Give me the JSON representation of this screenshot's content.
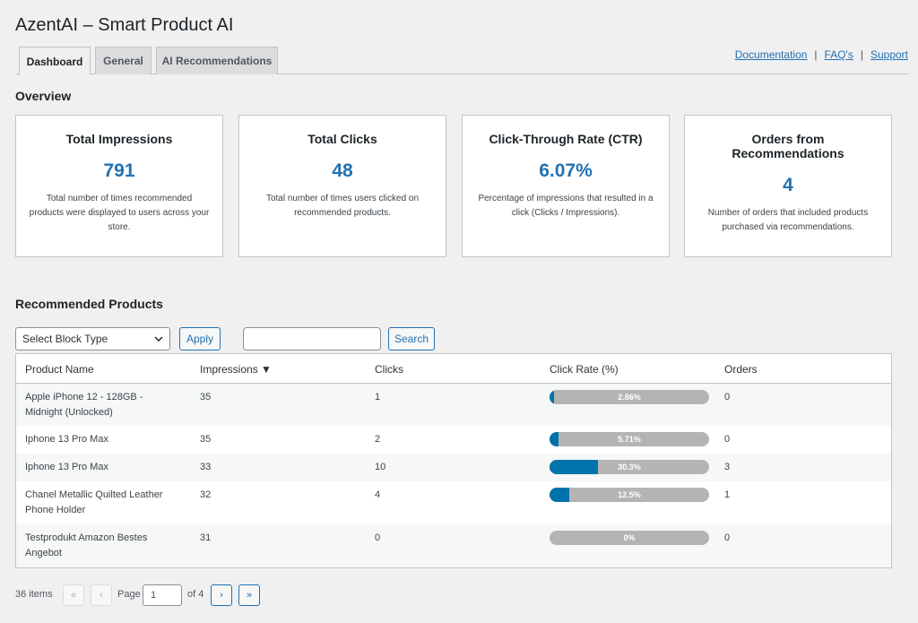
{
  "title": "AzentAI – Smart Product AI",
  "tabs": [
    "Dashboard",
    "General",
    "AI Recommendations"
  ],
  "links": [
    "Documentation",
    "FAQ's",
    "Support"
  ],
  "overview": {
    "heading": "Overview",
    "cards": [
      {
        "title": "Total Impressions",
        "value": "791",
        "desc": "Total number of times recommended products were displayed to users across your store."
      },
      {
        "title": "Total Clicks",
        "value": "48",
        "desc": "Total number of times users clicked on recommended products."
      },
      {
        "title": "Click-Through Rate (CTR)",
        "value": "6.07%",
        "desc": "Percentage of impressions that resulted in a click (Clicks / Impressions)."
      },
      {
        "title": "Orders from Recommendations",
        "value": "4",
        "desc": "Number of orders that included products purchased via recommendations."
      }
    ]
  },
  "products": {
    "heading": "Recommended Products",
    "select_value": "Select Block Type",
    "apply_label": "Apply",
    "search_label": "Search",
    "search_value": "",
    "columns": [
      "Product Name",
      "Impressions ▼",
      "Clicks",
      "Click Rate (%)",
      "Orders"
    ],
    "rows": [
      {
        "name": "Apple iPhone 12 - 128GB - Midnight (Unlocked)",
        "impressions": "35",
        "clicks": "1",
        "rate_label": "2.86%",
        "rate": 2.86,
        "orders": "0"
      },
      {
        "name": "Iphone 13 Pro Max",
        "impressions": "35",
        "clicks": "2",
        "rate_label": "5.71%",
        "rate": 5.71,
        "orders": "0"
      },
      {
        "name": "Iphone 13 Pro Max",
        "impressions": "33",
        "clicks": "10",
        "rate_label": "30.3%",
        "rate": 30.3,
        "orders": "3"
      },
      {
        "name": "Chanel Metallic Quilted Leather Phone Holder",
        "impressions": "32",
        "clicks": "4",
        "rate_label": "12.5%",
        "rate": 12.5,
        "orders": "1"
      },
      {
        "name": "Testprodukt Amazon Bestes Angebot",
        "impressions": "31",
        "clicks": "0",
        "rate_label": "0%",
        "rate": 0,
        "orders": "0"
      }
    ]
  },
  "pagination": {
    "items": "36 items",
    "first": "«",
    "prev": "‹",
    "page_label": "Page",
    "page": "1",
    "of": "of 4",
    "next": "›",
    "last": "»"
  },
  "colors": {
    "accent": "#2271b1",
    "bar_fill": "#0073aa",
    "bar_track": "#b4b4b4"
  }
}
